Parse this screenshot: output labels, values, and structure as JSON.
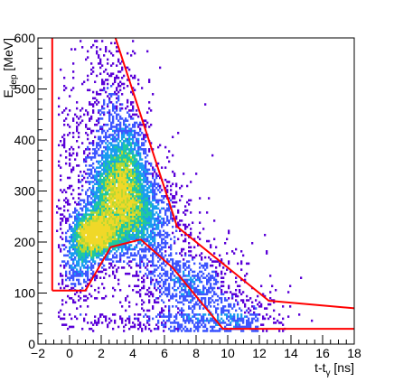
{
  "chart_data": {
    "type": "heatmap",
    "title": "",
    "xlabel": "t-t_γ [ns]",
    "ylabel": "E_dep [MeV]",
    "xlim": [
      -2,
      18
    ],
    "ylim": [
      0,
      600
    ],
    "x_ticks": [
      -2,
      0,
      2,
      4,
      6,
      8,
      10,
      12,
      14,
      16,
      18
    ],
    "y_ticks": [
      0,
      100,
      200,
      300,
      400,
      500,
      600
    ],
    "colormap": [
      "#5a00d8",
      "#3d55ff",
      "#1a9cf0",
      "#1ec8a0",
      "#b8d830",
      "#f0d828"
    ],
    "density_peak": {
      "x": 1.5,
      "y": 215
    },
    "density_regions": [
      {
        "x": 1.5,
        "y": 215,
        "sx": 0.9,
        "sy": 28,
        "w": 1.0
      },
      {
        "x": 2.8,
        "y": 300,
        "sx": 1.0,
        "sy": 60,
        "w": 0.55
      },
      {
        "x": 3.8,
        "y": 360,
        "sx": 0.8,
        "sy": 60,
        "w": 0.35
      },
      {
        "x": 4.5,
        "y": 250,
        "sx": 1.4,
        "sy": 50,
        "w": 0.4
      },
      {
        "x": 0.5,
        "y": 150,
        "sx": 0.8,
        "sy": 40,
        "w": 0.3
      },
      {
        "x": 7.5,
        "y": 120,
        "sx": 1.6,
        "sy": 40,
        "w": 0.25
      },
      {
        "x": 10.5,
        "y": 60,
        "sx": 1.8,
        "sy": 25,
        "w": 0.15
      },
      {
        "x": 2.5,
        "y": 480,
        "sx": 1.0,
        "sy": 70,
        "w": 0.15
      }
    ],
    "cut_outer": {
      "name": "",
      "color": "#ff0000",
      "x": [
        -1.1,
        -1.1,
        1.0,
        2.6,
        4.5,
        7.0,
        12.6,
        18.0,
        18.0
      ],
      "y": [
        600,
        105,
        105,
        190,
        205,
        130,
        35,
        35,
        30
      ],
      "closed": false
    },
    "cut_upper": {
      "name": "",
      "color": "#ff0000",
      "x": [
        2.9,
        6.8,
        12.6,
        18.0
      ],
      "y": [
        600,
        230,
        85,
        70
      ]
    },
    "cut_lower": {
      "name": "",
      "color": "#ff0000",
      "x": [
        -1.1,
        1.0,
        2.6,
        4.5,
        6.5,
        9.7,
        18.0
      ],
      "y": [
        105,
        105,
        190,
        205,
        150,
        30,
        30
      ]
    }
  }
}
